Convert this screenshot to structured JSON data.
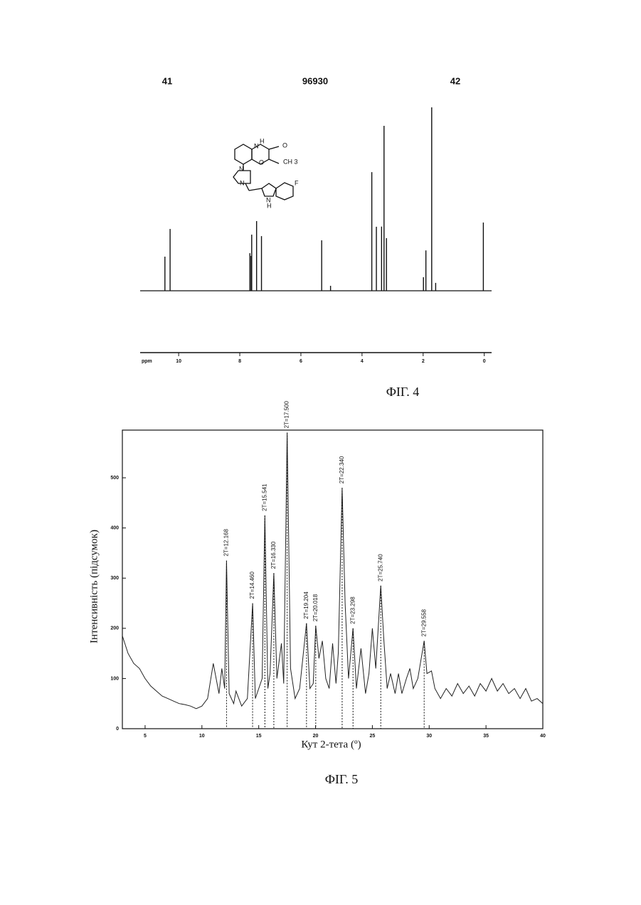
{
  "header": {
    "left": "41",
    "center": "96930",
    "right": "42"
  },
  "structure": {
    "atoms": [
      "H",
      "N",
      "O",
      "O",
      "CH 3",
      "N",
      "N",
      "F",
      "N",
      "H"
    ]
  },
  "chart_data": [
    {
      "type": "spectrum",
      "caption": "ФІГ. 4",
      "x_axis_label": "ppm",
      "color": "#111",
      "x": [
        10.45,
        10.28,
        7.67,
        7.63,
        7.61,
        7.45,
        7.29,
        5.32,
        5.03,
        3.68,
        3.53,
        3.36,
        3.28,
        3.2,
        1.99,
        1.91,
        1.72,
        1.59,
        0.03
      ],
      "values": [
        18.6,
        33.7,
        20.5,
        19,
        30.6,
        38,
        29.8,
        27.5,
        2.7,
        64.7,
        34.9,
        35,
        89.9,
        28.7,
        7.4,
        22,
        100,
        4.3,
        37.2
      ],
      "xlim": [
        11.26,
        -0.24
      ],
      "xticks": [
        10,
        8,
        6,
        4,
        2,
        0
      ],
      "ylim": [
        0,
        100
      ]
    },
    {
      "type": "line",
      "caption": "ФІГ. 5",
      "x_axis_label": "Кут 2-тета (º)",
      "y_axis_label": "Інтенсивність (підсумок)",
      "color": "#222",
      "x": [
        3.0,
        3.5,
        4.0,
        4.5,
        5.0,
        5.5,
        6.0,
        6.5,
        7.0,
        7.5,
        8.0,
        8.5,
        9.0,
        9.5,
        10.0,
        10.5,
        11.0,
        11.5,
        11.75,
        12.0,
        12.168,
        12.4,
        12.8,
        13.0,
        13.5,
        14.0,
        14.46,
        14.7,
        15.0,
        15.3,
        15.541,
        15.8,
        16.0,
        16.33,
        16.6,
        17.0,
        17.2,
        17.5,
        17.8,
        18.2,
        18.6,
        19.204,
        19.5,
        19.8,
        20.018,
        20.3,
        20.6,
        20.9,
        21.2,
        21.5,
        21.8,
        22.0,
        22.34,
        22.6,
        22.9,
        23.298,
        23.6,
        24.0,
        24.4,
        24.7,
        25.0,
        25.3,
        25.74,
        26.0,
        26.3,
        26.6,
        27.0,
        27.3,
        27.6,
        28.0,
        28.3,
        28.6,
        29.0,
        29.558,
        29.8,
        30.2,
        30.5,
        31.0,
        31.5,
        32.0,
        32.5,
        33.0,
        33.5,
        34.0,
        34.5,
        35.0,
        35.5,
        36.0,
        36.5,
        37.0,
        37.5,
        38.0,
        38.5,
        39.0,
        39.5,
        40.0
      ],
      "values": [
        185,
        150,
        130,
        120,
        100,
        85,
        75,
        65,
        60,
        55,
        50,
        48,
        45,
        40,
        45,
        60,
        130,
        70,
        120,
        80,
        335,
        70,
        50,
        75,
        45,
        60,
        250,
        60,
        80,
        100,
        425,
        80,
        110,
        310,
        100,
        170,
        90,
        590,
        120,
        60,
        80,
        210,
        80,
        90,
        205,
        140,
        175,
        100,
        80,
        170,
        90,
        150,
        480,
        250,
        100,
        200,
        80,
        160,
        70,
        110,
        200,
        120,
        285,
        180,
        80,
        110,
        70,
        110,
        70,
        100,
        120,
        80,
        100,
        175,
        110,
        115,
        80,
        60,
        80,
        65,
        90,
        70,
        85,
        65,
        90,
        75,
        100,
        75,
        90,
        70,
        80,
        60,
        80,
        55,
        60,
        50
      ],
      "xlim": [
        3,
        40
      ],
      "xticks": [
        5,
        10,
        15,
        20,
        25,
        30,
        35,
        40
      ],
      "ylim": [
        0,
        595
      ],
      "yticks": [
        0,
        100,
        200,
        300,
        400,
        500
      ],
      "annotations": [
        {
          "text": "2T=12.168",
          "x": 12.168
        },
        {
          "text": "2T=14.460",
          "x": 14.46
        },
        {
          "text": "2T=15.541",
          "x": 15.541
        },
        {
          "text": "2T=16.330",
          "x": 16.33
        },
        {
          "text": "2T=17.500",
          "x": 17.5
        },
        {
          "text": "2T=19.204",
          "x": 19.204
        },
        {
          "text": "2T=20.018",
          "x": 20.018
        },
        {
          "text": "2T=22.340",
          "x": 22.34
        },
        {
          "text": "2T=23.298",
          "x": 23.298
        },
        {
          "text": "2T=25.740",
          "x": 25.74
        },
        {
          "text": "2T=29.558",
          "x": 29.558
        }
      ]
    }
  ]
}
